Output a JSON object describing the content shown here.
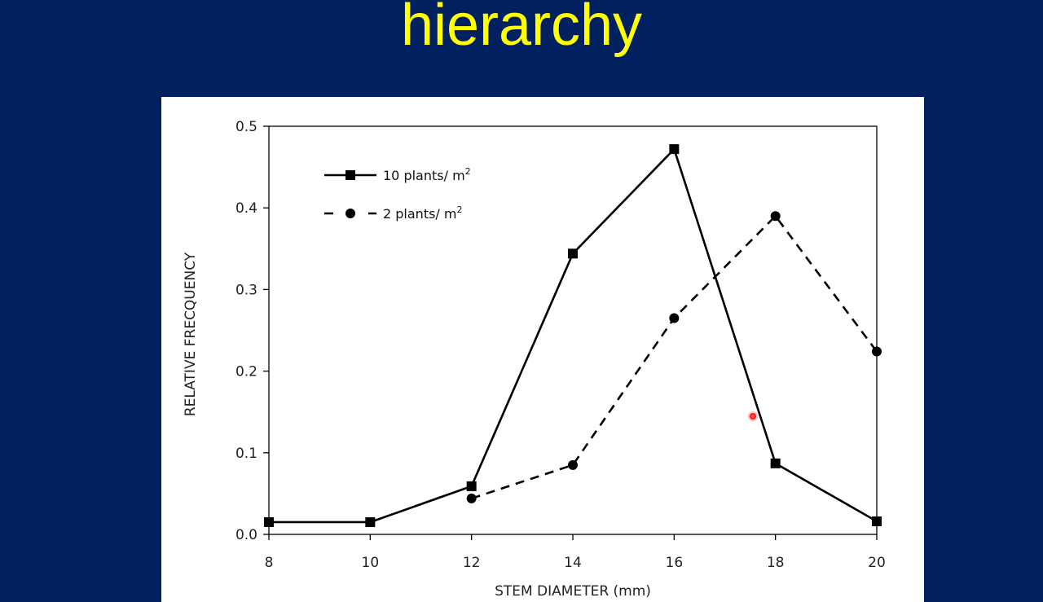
{
  "slide": {
    "title": "hierarchy",
    "background_color": "#00205f",
    "title_color": "#ffff00"
  },
  "chart_data": {
    "type": "line",
    "title": "",
    "xlabel": "STEM DIAMETER (mm)",
    "ylabel": "RELATIVE FRECQUENCY",
    "x": [
      8,
      10,
      12,
      14,
      16,
      18,
      20
    ],
    "xticks": [
      "8",
      "10",
      "12",
      "14",
      "16",
      "18",
      "20"
    ],
    "yticks": [
      "0.0",
      "0.1",
      "0.2",
      "0.3",
      "0.4",
      "0.5"
    ],
    "xlim": [
      8,
      20
    ],
    "ylim": [
      0,
      0.5
    ],
    "grid": false,
    "legend_position": "upper left",
    "series": [
      {
        "name": "10 plants/ m2",
        "label_main": "10 plants/ m",
        "label_sup": "2",
        "style": "solid",
        "marker": "square",
        "x": [
          8,
          10,
          12,
          14,
          16,
          18,
          20
        ],
        "values": [
          0.015,
          0.015,
          0.059,
          0.344,
          0.472,
          0.087,
          0.016
        ]
      },
      {
        "name": "2 plants/ m2",
        "label_main": "2 plants/ m",
        "label_sup": "2",
        "style": "dashed",
        "marker": "circle",
        "x": [
          12,
          14,
          16,
          18,
          20
        ],
        "values": [
          0.044,
          0.085,
          0.265,
          0.39,
          0.224
        ]
      }
    ]
  }
}
